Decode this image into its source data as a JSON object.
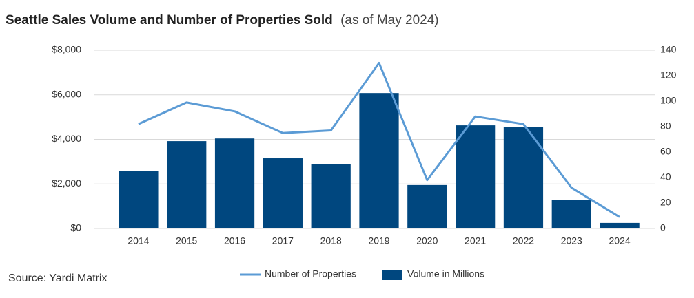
{
  "chart_data": {
    "type": "bar",
    "title": "Seattle Sales Volume and Number of Properties Sold",
    "subtitle": "(as of May 2024)",
    "source": "Source: Yardi Matrix",
    "categories": [
      "2014",
      "2015",
      "2016",
      "2017",
      "2018",
      "2019",
      "2020",
      "2021",
      "2022",
      "2023",
      "2024"
    ],
    "series": [
      {
        "name": "Number of Properties",
        "type": "line",
        "axis": "y2",
        "color": "#5b9bd5",
        "values": [
          82,
          99,
          92,
          75,
          77,
          130,
          38,
          88,
          82,
          32,
          9
        ]
      },
      {
        "name": "Volume in Millions",
        "type": "bar",
        "color": "#00477f",
        "values": [
          2590,
          3920,
          4040,
          3150,
          2900,
          6080,
          1950,
          4630,
          4570,
          1270,
          250
        ]
      }
    ],
    "ylim": [
      0,
      8000
    ],
    "yticks": [
      {
        "value": 0,
        "label": "$0"
      },
      {
        "value": 2000,
        "label": "$2,000"
      },
      {
        "value": 4000,
        "label": "$4,000"
      },
      {
        "value": 6000,
        "label": "$6,000"
      },
      {
        "value": 8000,
        "label": "$8,000"
      }
    ],
    "y2lim": [
      0,
      140
    ],
    "y2ticks": [
      0,
      20,
      40,
      60,
      80,
      100,
      120,
      140
    ],
    "grid": true
  }
}
